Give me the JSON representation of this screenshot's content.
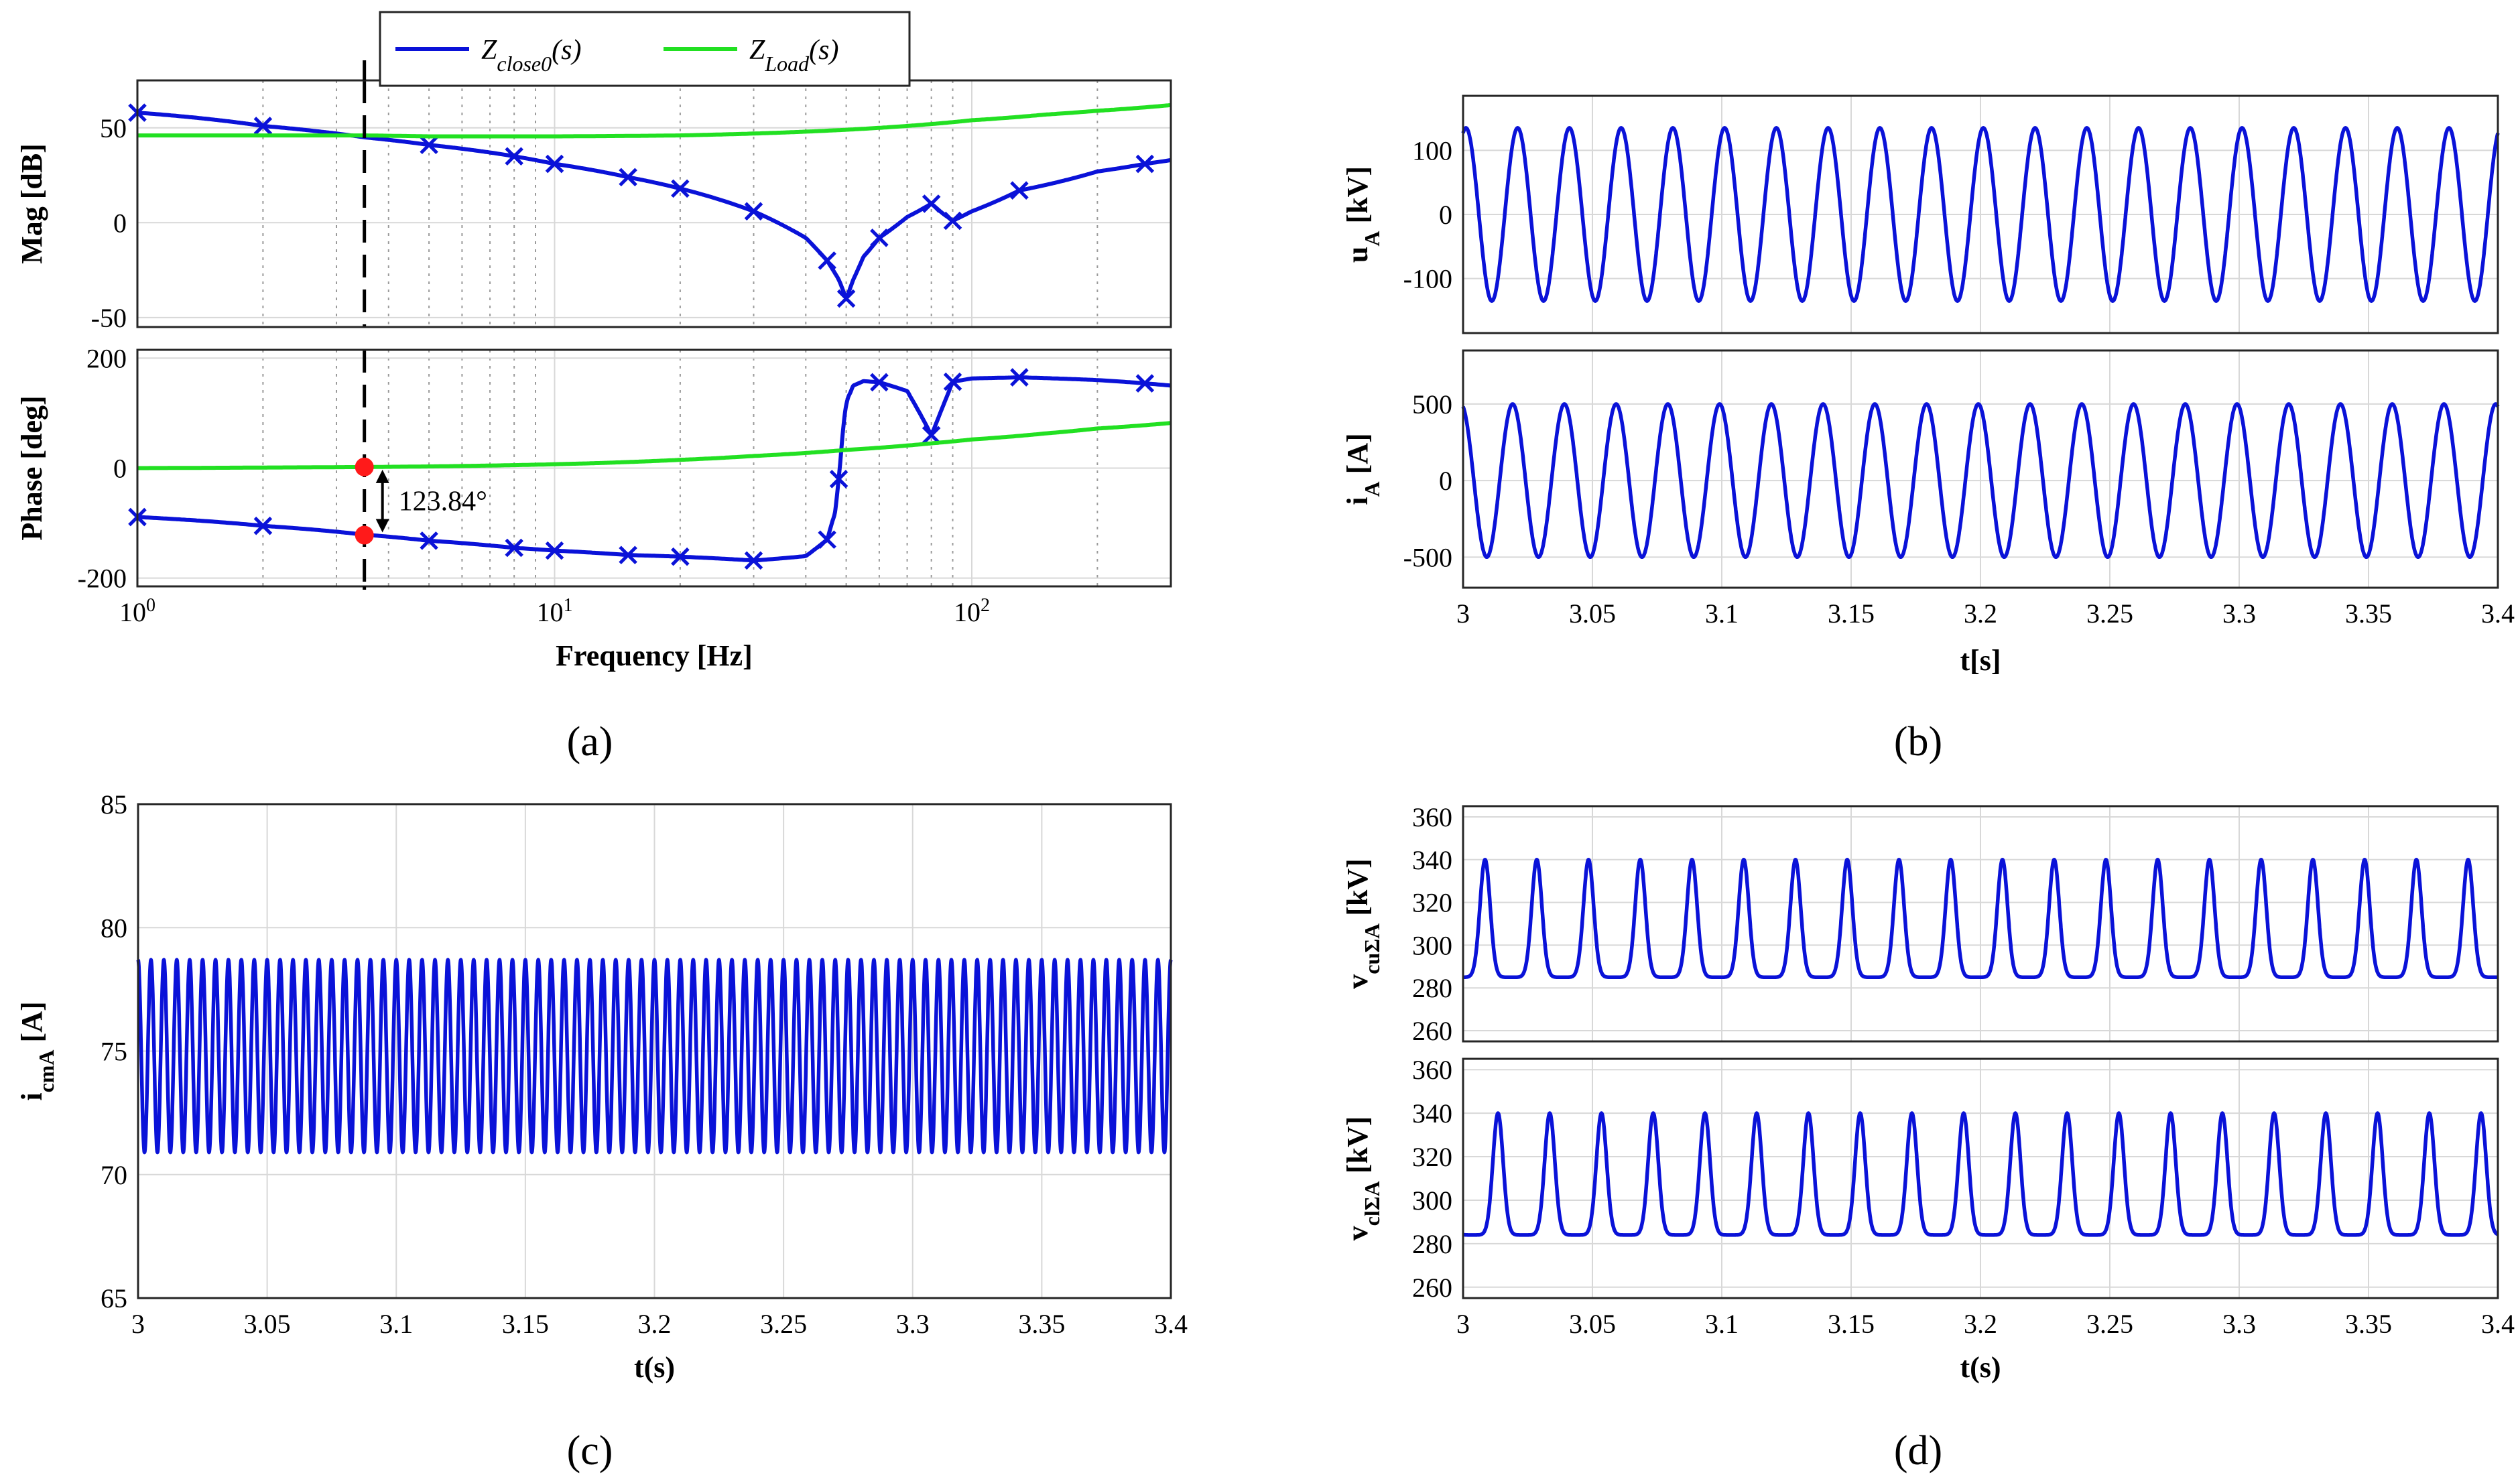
{
  "captions": {
    "a": "(a)",
    "b": "(b)",
    "c": "(c)",
    "d": "(d)"
  },
  "colors": {
    "blue": "#0a12d8",
    "green": "#22e022",
    "marker_red": "#ff1a1a"
  },
  "chart_data": [
    {
      "id": "a",
      "type": "line",
      "subtype": "bode",
      "legend": {
        "position": "top-center",
        "entries": [
          {
            "base": "Z",
            "sub": "close0",
            "suffix": "(s)",
            "color": "#0a12d8"
          },
          {
            "base": "Z",
            "sub": "Load",
            "suffix": "(s)",
            "color": "#22e022"
          }
        ]
      },
      "xlabel": "Frequency [Hz]",
      "xscale": "log",
      "xlim": [
        1,
        300
      ],
      "xticks": [
        {
          "v": 1,
          "e": "0"
        },
        {
          "v": 10,
          "e": "1"
        },
        {
          "v": 100,
          "e": "2"
        }
      ],
      "vline_hz": 3.5,
      "mag": {
        "ylabel": "Mag [dB]",
        "ylim": [
          -55,
          75
        ],
        "yticks": [
          -50,
          0,
          50
        ],
        "series": [
          {
            "name": "Z_close0(s)",
            "color": "#0a12d8",
            "markers": true,
            "freq": [
              1,
              2,
              3.5,
              5,
              8,
              10,
              15,
              20,
              30,
              40,
              45,
              48,
              50,
              52,
              55,
              60,
              70,
              80,
              85,
              90,
              100,
              130,
              200,
              260,
              300
            ],
            "db": [
              58,
              51,
              45,
              41,
              35,
              31,
              24,
              18,
              6,
              -8,
              -20,
              -30,
              -40,
              -30,
              -18,
              -8,
              3,
              10,
              5,
              1,
              6,
              17,
              27,
              31,
              33
            ],
            "marker_freq": [
              1,
              2,
              5,
              8,
              10,
              15,
              20,
              30,
              45,
              50,
              60,
              80,
              90,
              130,
              260
            ]
          },
          {
            "name": "Z_Load(s)",
            "color": "#22e022",
            "markers": false,
            "freq": [
              1,
              2,
              3.5,
              5,
              10,
              20,
              30,
              50,
              80,
              100,
              150,
              200,
              300
            ],
            "db": [
              46,
              46,
              46,
              45.5,
              45.5,
              46,
              47,
              49,
              52,
              54,
              57,
              59,
              62
            ]
          }
        ]
      },
      "phase": {
        "ylabel": "Phase [deg]",
        "ylim": [
          -215,
          215
        ],
        "yticks": [
          -200,
          0,
          200
        ],
        "series": [
          {
            "name": "Z_close0(s)",
            "color": "#0a12d8",
            "markers": true,
            "freq": [
              1,
              2,
              3.5,
              5,
              8,
              10,
              15,
              20,
              30,
              40,
              45,
              47,
              48,
              49,
              50,
              52,
              55,
              60,
              70,
              75,
              80,
              85,
              90,
              100,
              130,
              200,
              260,
              300
            ],
            "deg": [
              -89,
              -105,
              -121,
              -132,
              -145,
              -150,
              -158,
              -161,
              -168,
              -160,
              -130,
              -80,
              -20,
              60,
              120,
              150,
              158,
              156,
              140,
              100,
              60,
              110,
              157,
              163,
              165,
              160,
              154,
              150
            ],
            "marker_freq": [
              1,
              2,
              5,
              8,
              10,
              15,
              20,
              30,
              45,
              48,
              60,
              80,
              90,
              130,
              260
            ]
          },
          {
            "name": "Z_Load(s)",
            "color": "#22e022",
            "markers": false,
            "freq": [
              1,
              2,
              3.5,
              5,
              10,
              20,
              30,
              50,
              80,
              100,
              150,
              200,
              300
            ],
            "deg": [
              0,
              1,
              2,
              3,
              7,
              15,
              22,
              33,
              45,
              52,
              63,
              72,
              82
            ]
          }
        ],
        "annotation": {
          "text": "123.84°",
          "freq": 3.5,
          "from_deg": 2,
          "to_deg": -121.84
        }
      }
    },
    {
      "id": "b",
      "type": "line",
      "xlabel": "t[s]",
      "xlim": [
        3,
        3.4
      ],
      "xticks": [
        3,
        3.05,
        3.1,
        3.15,
        3.2,
        3.25,
        3.3,
        3.35,
        3.4
      ],
      "subplots": [
        {
          "ylabel": "u",
          "ysub": "A",
          "yunit": "[kV]",
          "ylim": [
            -185,
            185
          ],
          "yticks": [
            -100,
            0,
            100
          ],
          "series": {
            "shape": "sine",
            "freq_hz": 50,
            "amplitude": 135,
            "offset": 0,
            "phase_deg": 70
          }
        },
        {
          "ylabel": "i",
          "ysub": "A",
          "yunit": "[A]",
          "ylim": [
            -700,
            850
          ],
          "yticks": [
            -500,
            0,
            500
          ],
          "series": {
            "shape": "sine",
            "freq_hz": 50,
            "amplitude": 500,
            "offset": 0,
            "phase_deg": 105
          }
        }
      ]
    },
    {
      "id": "c",
      "type": "line",
      "xlabel": "t(s)",
      "ylabel": "i",
      "ysub": "cmA",
      "yunit": "[A]",
      "xlim": [
        3,
        3.4
      ],
      "ylim": [
        65,
        85
      ],
      "xticks": [
        3,
        3.05,
        3.1,
        3.15,
        3.2,
        3.25,
        3.3,
        3.35,
        3.4
      ],
      "yticks": [
        65,
        70,
        75,
        80,
        85
      ],
      "series": {
        "shape": "sine",
        "freq_hz": 200,
        "amplitude": 3.9,
        "offset": 74.8,
        "phase_deg": 90
      }
    },
    {
      "id": "d",
      "type": "line",
      "xlabel": "t(s)",
      "xlim": [
        3,
        3.4
      ],
      "xticks": [
        3,
        3.05,
        3.1,
        3.15,
        3.2,
        3.25,
        3.3,
        3.35,
        3.4
      ],
      "subplots": [
        {
          "ylabel": "v",
          "ysub": "cuΣA",
          "yunit": "[kV]",
          "ylim": [
            255,
            365
          ],
          "yticks": [
            260,
            280,
            300,
            320,
            340,
            360
          ],
          "series": {
            "shape": "pulse",
            "freq_hz": 50,
            "base": 285,
            "peak": 340,
            "offset_s": 0.0085
          }
        },
        {
          "ylabel": "v",
          "ysub": "clΣA",
          "yunit": "[kV]",
          "ylim": [
            255,
            365
          ],
          "yticks": [
            260,
            280,
            300,
            320,
            340,
            360
          ],
          "series": {
            "shape": "pulse",
            "freq_hz": 50,
            "base": 284,
            "peak": 340,
            "offset_s": 0.0135
          }
        }
      ]
    }
  ]
}
